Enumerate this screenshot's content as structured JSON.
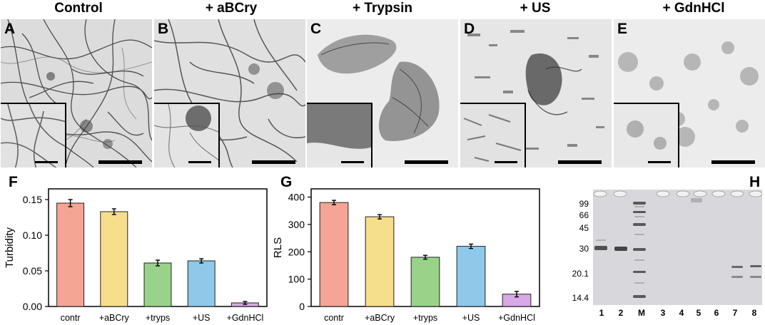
{
  "micrographs": [
    {
      "letter": "A",
      "title": "Control"
    },
    {
      "letter": "B",
      "title": "+ aBCry"
    },
    {
      "letter": "C",
      "title": "+ Trypsin"
    },
    {
      "letter": "D",
      "title": "+ US"
    },
    {
      "letter": "E",
      "title": "+ GdnHCl"
    }
  ],
  "charts": {
    "F": {
      "letter": "F",
      "ylabel": "Turbidity",
      "yticks": [
        "0.00",
        "0.05",
        "0.10",
        "0.15"
      ],
      "ylim": [
        0,
        0.165
      ],
      "categories": [
        "contr",
        "+aBCry",
        "+tryps",
        "+US",
        "+GdnHCl"
      ],
      "values": [
        0.145,
        0.133,
        0.061,
        0.064,
        0.005
      ],
      "errors": [
        0.005,
        0.004,
        0.004,
        0.003,
        0.002
      ],
      "colors": [
        "#f4a593",
        "#f7de8a",
        "#98d389",
        "#8ec9ea",
        "#d9a8e6"
      ]
    },
    "G": {
      "letter": "G",
      "ylabel": "RLS",
      "yticks": [
        "0",
        "100",
        "200",
        "300",
        "400"
      ],
      "ylim": [
        0,
        430
      ],
      "categories": [
        "contr",
        "+aBCry",
        "+tryps",
        "+US",
        "+GdnHCl"
      ],
      "values": [
        380,
        328,
        180,
        220,
        45
      ],
      "errors": [
        8,
        8,
        7,
        8,
        10
      ],
      "colors": [
        "#f4a593",
        "#f7de8a",
        "#98d389",
        "#8ec9ea",
        "#d9a8e6"
      ]
    }
  },
  "gel": {
    "letter": "H",
    "mw_markers": [
      "99",
      "66",
      "45",
      "30",
      "20.1",
      "14.4"
    ],
    "lanes": [
      "1",
      "2",
      "M",
      "3",
      "4",
      "5",
      "6",
      "7",
      "8"
    ]
  }
}
